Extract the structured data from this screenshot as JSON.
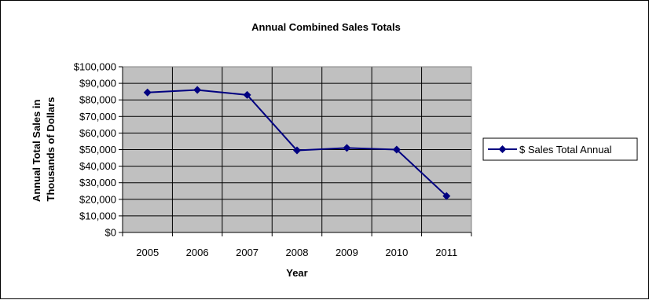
{
  "chart_data": {
    "type": "line",
    "title": "Annual Combined Sales Totals",
    "xlabel": "Year",
    "ylabel_lines": [
      "Annual Total Sales in",
      "Thousands of Dollars"
    ],
    "categories": [
      "2005",
      "2006",
      "2007",
      "2008",
      "2009",
      "2010",
      "2011"
    ],
    "series": [
      {
        "name": "$ Sales Total Annual",
        "values": [
          84500,
          86000,
          83000,
          49500,
          51000,
          50000,
          22000
        ]
      }
    ],
    "ylim": [
      0,
      100000
    ],
    "ytick_step": 10000,
    "ytick_labels": [
      "$0",
      "$10,000",
      "$20,000",
      "$30,000",
      "$40,000",
      "$50,000",
      "$60,000",
      "$70,000",
      "$80,000",
      "$90,000",
      "$100,000"
    ],
    "grid": true,
    "legend_position": "right",
    "colors": {
      "series": "#000080",
      "plot_background": "#c0c0c0",
      "grid": "#000000"
    }
  }
}
